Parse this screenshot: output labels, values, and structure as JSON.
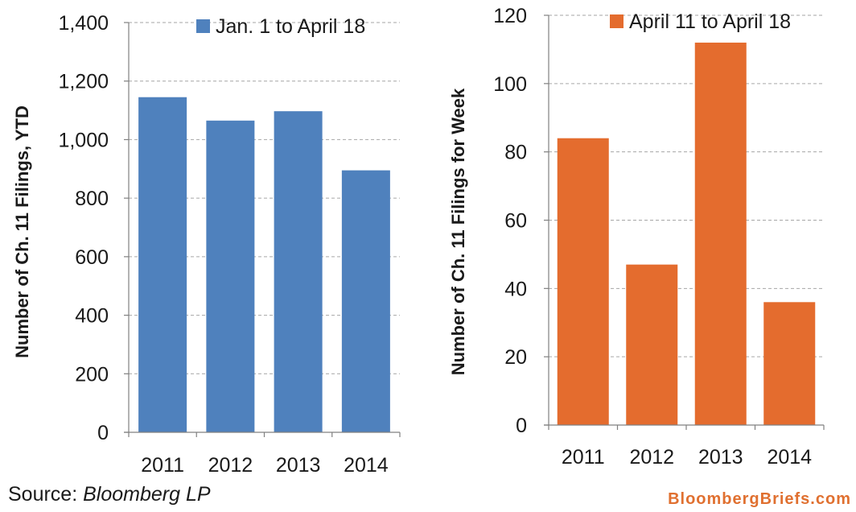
{
  "chart_data": [
    {
      "type": "bar",
      "categories": [
        "2011",
        "2012",
        "2013",
        "2014"
      ],
      "series": [
        {
          "name": "Jan. 1 to April 18",
          "values": [
            1145,
            1065,
            1097,
            895
          ],
          "color": "#4f81bd"
        }
      ],
      "ylabel": "Number of Ch. 11 Filings, YTD",
      "ylim": [
        0,
        1400
      ],
      "yticks": [
        0,
        200,
        400,
        600,
        800,
        1000,
        1200,
        1400
      ],
      "ytick_labels": [
        "0",
        "200",
        "400",
        "600",
        "800",
        "1,000",
        "1,200",
        "1,400"
      ],
      "grid": true,
      "legend": "top-right"
    },
    {
      "type": "bar",
      "categories": [
        "2011",
        "2012",
        "2013",
        "2014"
      ],
      "series": [
        {
          "name": "April 11 to April 18",
          "values": [
            84,
            47,
            112,
            36
          ],
          "color": "#e46c2e"
        }
      ],
      "ylabel": "Number of Ch. 11 Filings for Week",
      "ylim": [
        0,
        120
      ],
      "yticks": [
        0,
        20,
        40,
        60,
        80,
        100,
        120
      ],
      "ytick_labels": [
        "0",
        "20",
        "40",
        "60",
        "80",
        "100",
        "120"
      ],
      "grid": true,
      "legend": "top-right"
    }
  ],
  "footer": {
    "source_label": "Source: ",
    "source_name": "Bloomberg LP",
    "brand": "BloombergBriefs.com"
  }
}
